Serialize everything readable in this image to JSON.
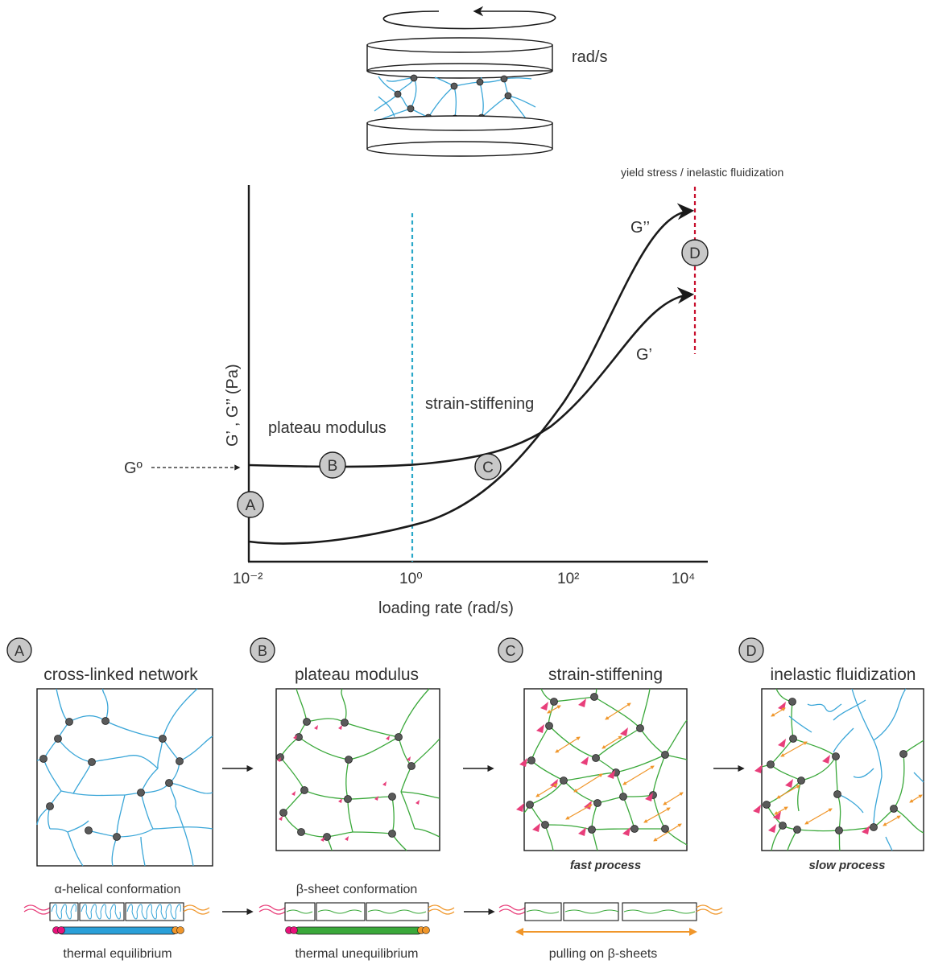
{
  "figure": {
    "rheometer_units": "rad/s",
    "yield_label": "yield stress / inelastic fluidization",
    "y_axis_label": "G’ , G’’ (Pa)",
    "x_axis_label": "loading rate (rad/s)",
    "x_ticks": [
      "10⁻²",
      "10⁰",
      "10²",
      "10⁴"
    ],
    "g0_label": "Gº",
    "plateau_label": "plateau modulus",
    "stiffening_label": "strain-stiffening",
    "g_double_prime_label": "G’’",
    "g_prime_label": "G’",
    "markers": {
      "a": "A",
      "b": "B",
      "c": "C",
      "d": "D"
    }
  },
  "panels": [
    {
      "letter": "A",
      "title": "cross-linked network",
      "caption": ""
    },
    {
      "letter": "B",
      "title": "plateau modulus",
      "caption": ""
    },
    {
      "letter": "C",
      "title": "strain-stiffening",
      "caption": "fast process"
    },
    {
      "letter": "D",
      "title": "inelastic fluidization",
      "caption": "slow process"
    }
  ],
  "conformations": [
    {
      "top": "α-helical conformation",
      "bottom": "thermal equilibrium"
    },
    {
      "top": "β-sheet conformation",
      "bottom": "thermal unequilibrium"
    },
    {
      "top": "",
      "bottom": "pulling on β-sheets"
    }
  ],
  "colors": {
    "blue_fiber": "#3aa6d8",
    "green_fiber": "#3aa83a",
    "node": "#5a5a5a",
    "pink": "#e83e7a",
    "orange": "#f0962a",
    "yield_line": "#c8102e",
    "plateau_line": "#2aa8c8",
    "marker_fill": "#c8c8c8"
  }
}
